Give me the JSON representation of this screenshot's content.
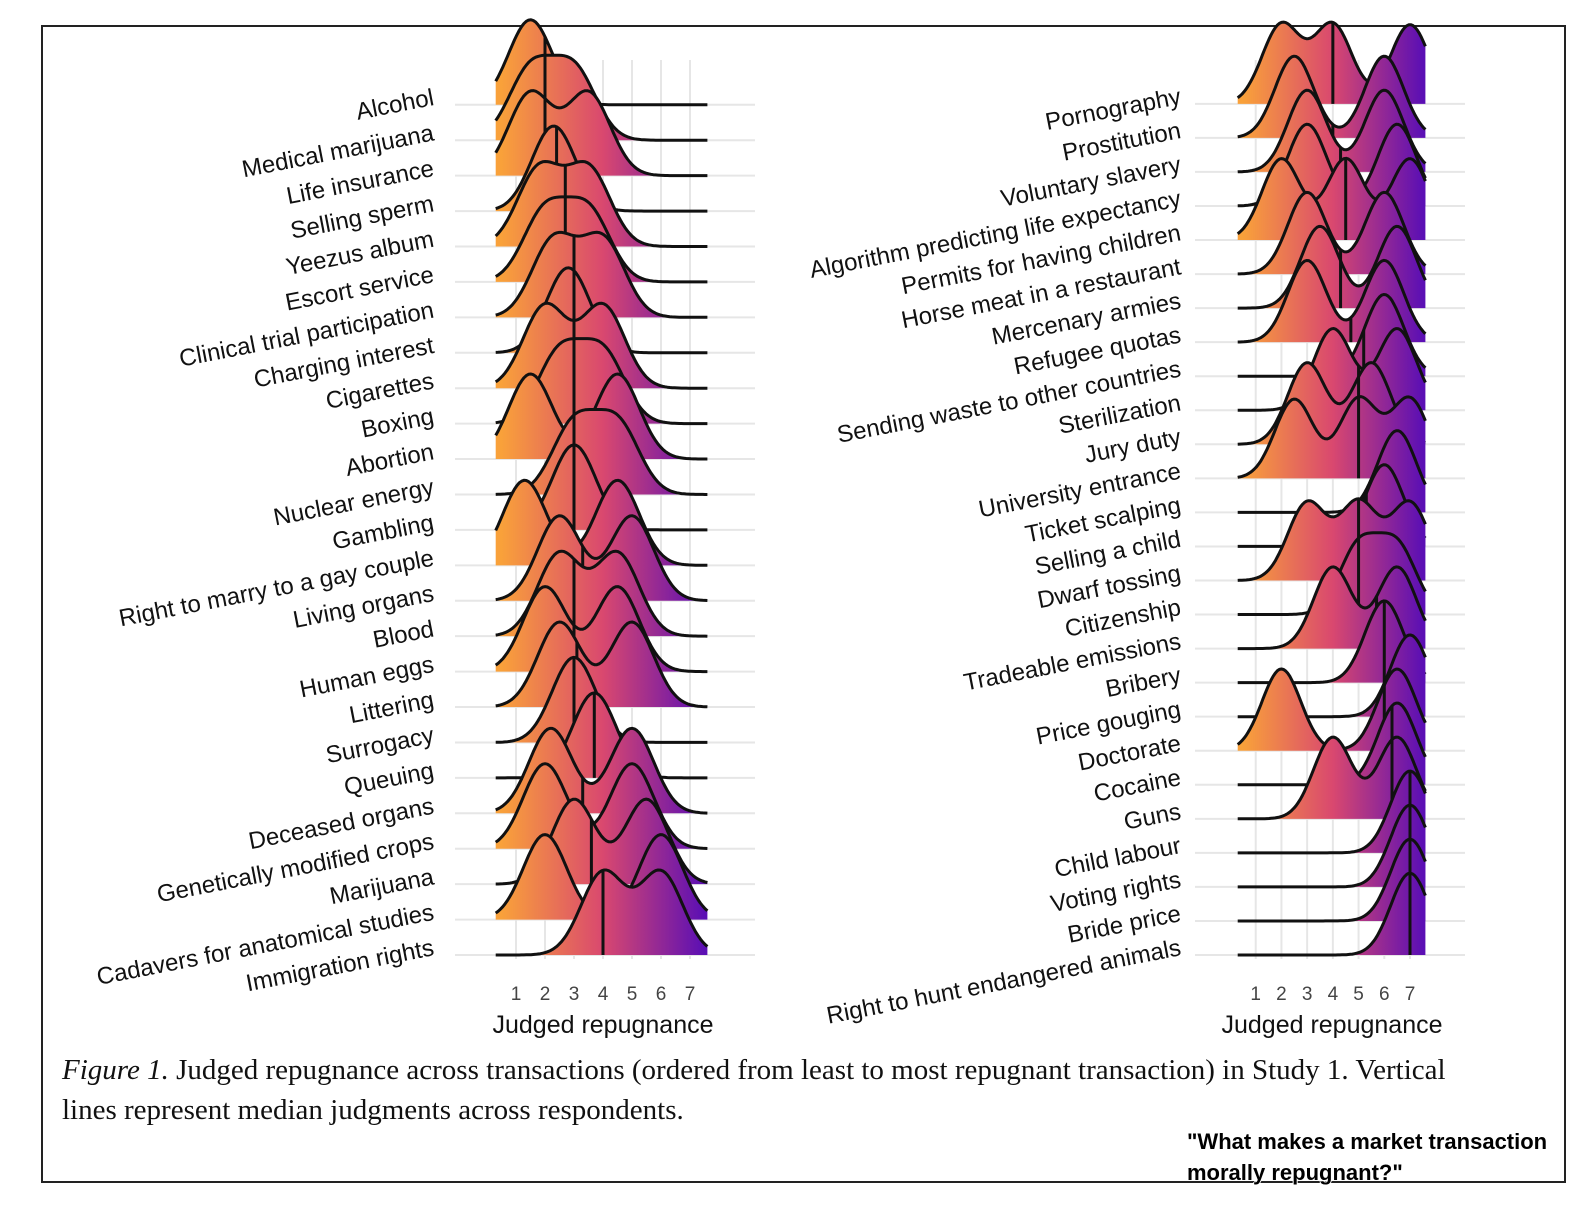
{
  "colors": {
    "low": "#f9a13a",
    "mid": "#d9486f",
    "high": "#5b0fb4",
    "grid": "#e6e6e6",
    "line": "#111111"
  },
  "chart_data": [
    {
      "type": "ridgeline",
      "xlabel": "Judged repugnance",
      "x_ticks": [
        1,
        2,
        3,
        4,
        5,
        6,
        7
      ],
      "xlim": [
        0,
        8
      ],
      "grid": true,
      "rows": [
        {
          "label": "Alcohol",
          "median": 2,
          "peaks": [
            1.5
          ]
        },
        {
          "label": "Medical marijuana",
          "median": 2,
          "peaks": [
            1.5,
            3
          ]
        },
        {
          "label": "Life insurance",
          "median": 2,
          "peaks": [
            1.5,
            3.5
          ]
        },
        {
          "label": "Selling sperm",
          "median": 2.4,
          "peaks": [
            2.3
          ]
        },
        {
          "label": "Yeezus album",
          "median": 2.7,
          "peaks": [
            1.8,
            3.5
          ]
        },
        {
          "label": "Escort service",
          "median": 2.7,
          "peaks": [
            2,
            3.5
          ]
        },
        {
          "label": "Clinical trial participation",
          "median": 3,
          "peaks": [
            2.3,
            4
          ]
        },
        {
          "label": "Charging interest",
          "median": 3,
          "peaks": [
            2.8
          ]
        },
        {
          "label": "Cigarettes",
          "median": 3,
          "peaks": [
            2,
            4
          ]
        },
        {
          "label": "Boxing",
          "median": 3,
          "peaks": [
            2.5,
            4
          ]
        },
        {
          "label": "Abortion",
          "median": 3,
          "peaks": [
            1.5,
            4.5
          ]
        },
        {
          "label": "Nuclear energy",
          "median": 3,
          "peaks": [
            3,
            4.5
          ]
        },
        {
          "label": "Gambling",
          "median": 3,
          "peaks": [
            3
          ]
        },
        {
          "label": "Right to marry to a gay couple",
          "median": 3,
          "peaks": [
            1.3,
            4.5
          ]
        },
        {
          "label": "Living organs",
          "median": 3.3,
          "peaks": [
            2.5,
            5
          ]
        },
        {
          "label": "Blood",
          "median": 3,
          "peaks": [
            2.5,
            4.5
          ]
        },
        {
          "label": "Human eggs",
          "median": 3,
          "peaks": [
            2,
            4.5
          ]
        },
        {
          "label": "Littering",
          "median": 3.1,
          "peaks": [
            2.5,
            5
          ]
        },
        {
          "label": "Surrogacy",
          "median": 3,
          "peaks": [
            3
          ]
        },
        {
          "label": "Queuing",
          "median": 3.7,
          "peaks": [
            3.7
          ]
        },
        {
          "label": "Deceased organs",
          "median": 3.3,
          "peaks": [
            2.2,
            5
          ]
        },
        {
          "label": "Genetically modified crops",
          "median": 3.6,
          "peaks": [
            2,
            5
          ]
        },
        {
          "label": "Marijuana",
          "median": 3.6,
          "peaks": [
            3,
            5.5
          ]
        },
        {
          "label": "Cadavers for anatomical studies",
          "median": 4,
          "peaks": [
            2,
            6
          ]
        },
        {
          "label": "Immigration rights",
          "median": 4,
          "peaks": [
            4,
            6
          ]
        }
      ]
    },
    {
      "type": "ridgeline",
      "xlabel": "Judged repugnance",
      "x_ticks": [
        1,
        2,
        3,
        4,
        5,
        6,
        7
      ],
      "xlim": [
        0,
        8
      ],
      "grid": true,
      "rows": [
        {
          "label": "Pornography",
          "median": 4,
          "peaks": [
            2,
            4,
            7
          ]
        },
        {
          "label": "Prostitution",
          "median": 4,
          "peaks": [
            2.5,
            6
          ]
        },
        {
          "label": "Voluntary slavery",
          "median": 4.3,
          "peaks": [
            3,
            6
          ]
        },
        {
          "label": "Algorithm predicting life expectancy",
          "median": 4.7,
          "peaks": [
            3,
            6.5
          ]
        },
        {
          "label": "Permits for having children",
          "median": 4.5,
          "peaks": [
            2,
            4.5,
            7
          ]
        },
        {
          "label": "Horse meat in a restaurant",
          "median": 4.3,
          "peaks": [
            3,
            6
          ]
        },
        {
          "label": "Mercenary armies",
          "median": 4.3,
          "peaks": [
            3.5,
            6.5
          ]
        },
        {
          "label": "Refugee quotas",
          "median": 4.7,
          "peaks": [
            3,
            6
          ]
        },
        {
          "label": "Sending waste to other countries",
          "median": 5.2,
          "peaks": [
            6
          ]
        },
        {
          "label": "Sterilization",
          "median": 5,
          "peaks": [
            4,
            6.5
          ]
        },
        {
          "label": "Jury duty",
          "median": 5,
          "peaks": [
            3,
            5.5
          ]
        },
        {
          "label": "University entrance",
          "median": 5,
          "peaks": [
            2.5,
            5,
            7
          ]
        },
        {
          "label": "Ticket scalping",
          "median": 5.2,
          "peaks": [
            6.5
          ]
        },
        {
          "label": "Selling a child",
          "median": 5.3,
          "peaks": [
            6
          ]
        },
        {
          "label": "Dwarf tossing",
          "median": 5,
          "peaks": [
            3,
            5,
            7
          ]
        },
        {
          "label": "Citizenship",
          "median": 5,
          "peaks": [
            5,
            6.5
          ]
        },
        {
          "label": "Tradeable emissions",
          "median": 5.7,
          "peaks": [
            4,
            6.5
          ]
        },
        {
          "label": "Bribery",
          "median": 6,
          "peaks": [
            6
          ]
        },
        {
          "label": "Price gouging",
          "median": 6,
          "peaks": [
            7
          ]
        },
        {
          "label": "Doctorate",
          "median": 6,
          "peaks": [
            2,
            6.5
          ]
        },
        {
          "label": "Cocaine",
          "median": 6.3,
          "peaks": [
            6.5
          ]
        },
        {
          "label": "Guns",
          "median": 6.3,
          "peaks": [
            4,
            6.5
          ]
        },
        {
          "label": "Child labour",
          "median": 7,
          "peaks": [
            7
          ]
        },
        {
          "label": "Voting rights",
          "median": 7,
          "peaks": [
            7
          ]
        },
        {
          "label": "Bride price",
          "median": 7,
          "peaks": [
            7
          ]
        },
        {
          "label": "Right to hunt endangered animals",
          "median": 7,
          "peaks": [
            7
          ]
        }
      ]
    }
  ],
  "caption": {
    "label": "Figure 1.",
    "text": " Judged repugnance across transactions (ordered from least to most repugnant transaction) in Study 1. Vertical lines represent median judgments across respondents."
  },
  "watermark": "\"What makes a market transaction morally repugnant?\""
}
